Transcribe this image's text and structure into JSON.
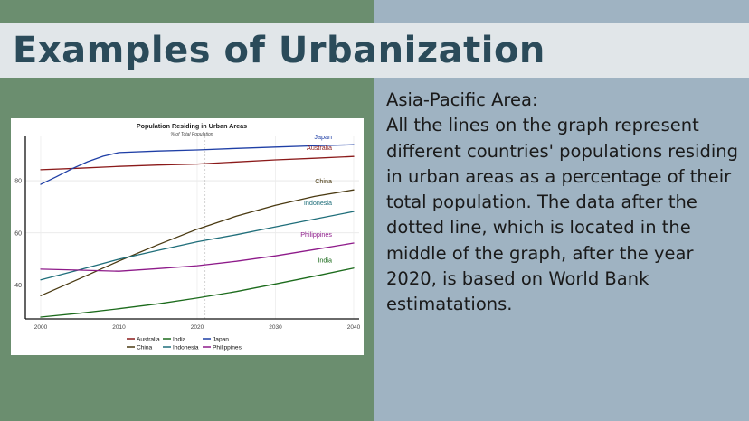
{
  "slide": {
    "title": "Examples of Urbanization",
    "heading": "Asia-Pacific Area:",
    "body": "All the lines on the graph represent different countries' populations residing in urban areas as a percentage of their total population. The data after the dotted line, which is located in the middle of the graph, after the year 2020, is based on World Bank estimatations.",
    "colors": {
      "left_panel": "#6b8e6f",
      "right_panel": "#9fb3c2",
      "title_band": "#e1e6e9",
      "title_text": "#2b4b5a"
    }
  },
  "chart_data": {
    "type": "line",
    "title": "Population Residing in Urban Areas",
    "subtitle": "% of Total Population",
    "xlabel": "",
    "ylabel": "",
    "xlim": [
      2000,
      2040
    ],
    "ylim": [
      27,
      97
    ],
    "xticks": [
      2000,
      2010,
      2020,
      2030,
      2040
    ],
    "yticks": [
      40,
      60,
      80
    ],
    "divider_x": 2021,
    "grid": true,
    "legend_position": "bottom",
    "series": [
      {
        "name": "Australia",
        "color": "#8b1a1a",
        "x": [
          2000,
          2005,
          2010,
          2015,
          2020,
          2025,
          2030,
          2035,
          2040
        ],
        "y": [
          84.2,
          84.8,
          85.5,
          86.0,
          86.4,
          87.2,
          88.0,
          88.6,
          89.3
        ]
      },
      {
        "name": "India",
        "color": "#1c6b1c",
        "x": [
          2000,
          2005,
          2010,
          2015,
          2020,
          2025,
          2030,
          2035,
          2040
        ],
        "y": [
          27.7,
          29.2,
          30.9,
          32.8,
          35.0,
          37.5,
          40.4,
          43.4,
          46.5
        ]
      },
      {
        "name": "Japan",
        "color": "#1f3fa6",
        "x": [
          2000,
          2002,
          2004,
          2006,
          2008,
          2010,
          2015,
          2020,
          2025,
          2030,
          2035,
          2040
        ],
        "y": [
          78.6,
          81.5,
          84.6,
          87.3,
          89.4,
          90.8,
          91.4,
          91.8,
          92.4,
          92.9,
          93.4,
          93.8
        ]
      },
      {
        "name": "China",
        "color": "#4a3a12",
        "x": [
          2000,
          2005,
          2010,
          2015,
          2020,
          2025,
          2030,
          2035,
          2040
        ],
        "y": [
          35.9,
          42.5,
          49.2,
          55.5,
          61.4,
          66.4,
          70.6,
          74.0,
          76.5
        ]
      },
      {
        "name": "Indonesia",
        "color": "#1f6e7a",
        "x": [
          2000,
          2005,
          2010,
          2015,
          2020,
          2025,
          2030,
          2035,
          2040
        ],
        "y": [
          42.0,
          45.9,
          49.9,
          53.3,
          56.6,
          59.3,
          62.3,
          65.3,
          68.2
        ]
      },
      {
        "name": "Philippines",
        "color": "#8e1b8a",
        "x": [
          2000,
          2005,
          2010,
          2015,
          2020,
          2025,
          2030,
          2035,
          2040
        ],
        "y": [
          46.1,
          45.7,
          45.3,
          46.3,
          47.4,
          49.1,
          51.2,
          53.6,
          56.1
        ]
      }
    ]
  }
}
